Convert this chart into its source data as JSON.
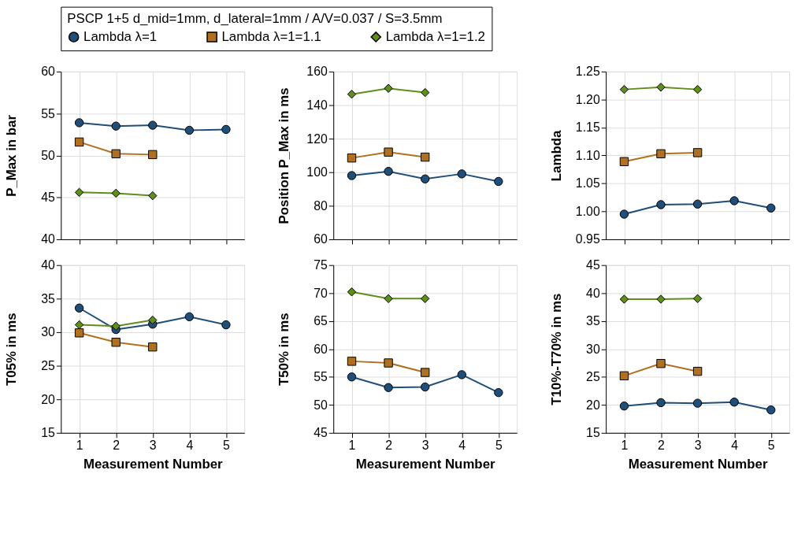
{
  "chart_data": [
    {
      "type": "line",
      "ylabel": "P_Max in bar",
      "legend": "top",
      "legend_title": "PSCP 1+5 d_mid=1mm, d_lateral=1mm / A/V=0.037 / S=3.5mm",
      "x": [
        1,
        2,
        3,
        4,
        5
      ],
      "xlim": [
        0.5,
        5.5
      ],
      "xticks": [
        1,
        2,
        3,
        4,
        5
      ],
      "ylim": [
        40,
        60
      ],
      "yticks": [
        40,
        45,
        50,
        55,
        60
      ],
      "grid": true,
      "tick_labels": "y",
      "series": [
        {
          "name": "Lambda λ=1",
          "color": "#1f4e79",
          "marker": "circle",
          "values": [
            53.9,
            53.5,
            53.6,
            53.0,
            53.1
          ]
        },
        {
          "name": "Lambda λ=1=1.1",
          "color": "#b0701f",
          "marker": "square",
          "values": [
            51.6,
            50.2,
            50.1,
            null,
            null
          ]
        },
        {
          "name": "Lambda λ=1=1.2",
          "color": "#5f8f1a",
          "marker": "diamond",
          "values": [
            45.6,
            45.5,
            45.2,
            null,
            null
          ]
        }
      ]
    },
    {
      "type": "line",
      "ylabel": "Position P_Max in ms",
      "x": [
        1,
        2,
        3,
        4,
        5
      ],
      "xlim": [
        0.5,
        5.5
      ],
      "xticks": [
        1,
        2,
        3,
        4,
        5
      ],
      "ylim": [
        60,
        160
      ],
      "yticks": [
        60,
        80,
        100,
        120,
        140,
        160
      ],
      "grid": true,
      "tick_labels": "y",
      "series": [
        {
          "color": "#1f4e79",
          "marker": "circle",
          "values": [
            98,
            100.5,
            96,
            99,
            94.5
          ]
        },
        {
          "color": "#b0701f",
          "marker": "square",
          "values": [
            108.5,
            112,
            109,
            null,
            null
          ]
        },
        {
          "color": "#5f8f1a",
          "marker": "diamond",
          "values": [
            146.5,
            150,
            147.5,
            null,
            null
          ]
        }
      ]
    },
    {
      "type": "line",
      "ylabel": "Lambda",
      "x": [
        1,
        2,
        3,
        4,
        5
      ],
      "xlim": [
        0.5,
        5.5
      ],
      "xticks": [
        1,
        2,
        3,
        4,
        5
      ],
      "ylim": [
        0.95,
        1.25
      ],
      "yticks": [
        0.95,
        {
          "value": 1.0,
          "label": "1.00"
        },
        1.05,
        {
          "value": 1.1,
          "label": "1.10"
        },
        1.15,
        {
          "value": 1.2,
          "label": "1.20"
        },
        1.25
      ],
      "grid": true,
      "tick_labels": "y",
      "series": [
        {
          "color": "#1f4e79",
          "marker": "circle",
          "values": [
            0.995,
            1.012,
            1.013,
            1.019,
            1.006
          ]
        },
        {
          "color": "#b0701f",
          "marker": "square",
          "values": [
            1.089,
            1.103,
            1.105,
            null,
            null
          ]
        },
        {
          "color": "#5f8f1a",
          "marker": "diamond",
          "values": [
            1.218,
            1.222,
            1.218,
            null,
            null
          ]
        }
      ]
    },
    {
      "type": "line",
      "xlabel": "Measurement Number",
      "ylabel": "T05% in ms",
      "x": [
        1,
        2,
        3,
        4,
        5
      ],
      "xlim": [
        0.5,
        5.5
      ],
      "xticks": [
        1,
        2,
        3,
        4,
        5
      ],
      "ylim": [
        15,
        40
      ],
      "yticks": [
        15,
        20,
        25,
        30,
        35,
        40
      ],
      "grid": true,
      "series": [
        {
          "color": "#1f4e79",
          "marker": "circle",
          "values": [
            33.6,
            30.4,
            31.2,
            32.3,
            31.1
          ]
        },
        {
          "color": "#b0701f",
          "marker": "square",
          "values": [
            29.9,
            28.5,
            27.8,
            null,
            null
          ]
        },
        {
          "color": "#5f8f1a",
          "marker": "diamond",
          "values": [
            31.1,
            30.9,
            31.8,
            null,
            null
          ]
        }
      ]
    },
    {
      "type": "line",
      "xlabel": "Measurement Number",
      "ylabel": "T50% in ms",
      "x": [
        1,
        2,
        3,
        4,
        5
      ],
      "xlim": [
        0.5,
        5.5
      ],
      "xticks": [
        1,
        2,
        3,
        4,
        5
      ],
      "ylim": [
        45,
        75
      ],
      "yticks": [
        45,
        50,
        55,
        60,
        65,
        70,
        75
      ],
      "grid": true,
      "series": [
        {
          "color": "#1f4e79",
          "marker": "circle",
          "values": [
            55.0,
            53.1,
            53.2,
            55.4,
            52.2
          ]
        },
        {
          "color": "#b0701f",
          "marker": "square",
          "values": [
            57.8,
            57.5,
            55.8,
            null,
            null
          ]
        },
        {
          "color": "#5f8f1a",
          "marker": "diamond",
          "values": [
            70.2,
            69.0,
            69.0,
            null,
            null
          ]
        }
      ]
    },
    {
      "type": "line",
      "xlabel": "Measurement Number",
      "ylabel": "T10%-T70% in ms",
      "x": [
        1,
        2,
        3,
        4,
        5
      ],
      "xlim": [
        0.5,
        5.5
      ],
      "xticks": [
        1,
        2,
        3,
        4,
        5
      ],
      "ylim": [
        15,
        45
      ],
      "yticks": [
        15,
        20,
        25,
        30,
        35,
        40,
        45
      ],
      "grid": true,
      "series": [
        {
          "color": "#1f4e79",
          "marker": "circle",
          "values": [
            19.8,
            20.4,
            20.3,
            20.5,
            19.1
          ]
        },
        {
          "color": "#b0701f",
          "marker": "square",
          "values": [
            25.2,
            27.4,
            26.0,
            null,
            null
          ]
        },
        {
          "color": "#5f8f1a",
          "marker": "diamond",
          "values": [
            38.9,
            38.9,
            39.0,
            null,
            null
          ]
        }
      ]
    }
  ]
}
